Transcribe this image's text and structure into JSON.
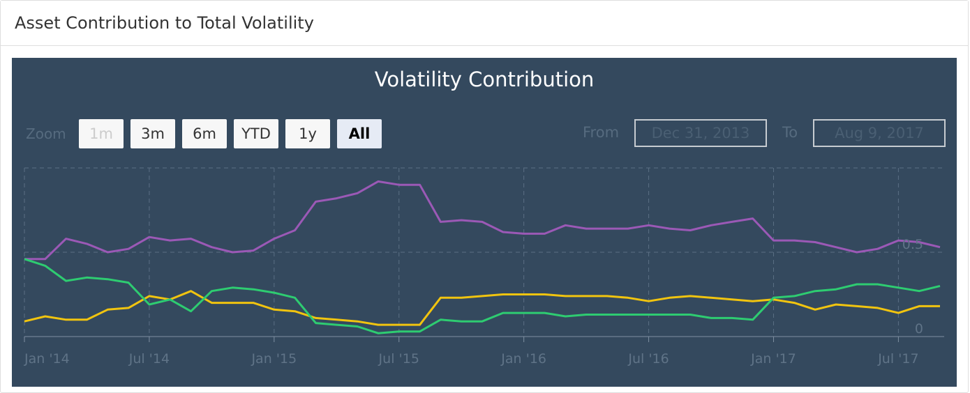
{
  "panel": {
    "title": "Asset Contribution to Total Volatility"
  },
  "range_selector": {
    "zoom_label": "Zoom",
    "buttons": [
      {
        "label": "1m",
        "state": "disabled"
      },
      {
        "label": "3m",
        "state": "normal"
      },
      {
        "label": "6m",
        "state": "normal"
      },
      {
        "label": "YTD",
        "state": "normal"
      },
      {
        "label": "1y",
        "state": "normal"
      },
      {
        "label": "All",
        "state": "selected"
      }
    ],
    "from_label": "From",
    "from_value": "Dec 31, 2013",
    "to_label": "To",
    "to_value": "Aug 9, 2017"
  },
  "colors": {
    "background": "#34495e",
    "grid": "#5b6f84",
    "axis": "#7f90a2",
    "series": [
      "#9b59b6",
      "#f1c40f",
      "#2ecc71"
    ]
  },
  "chart_data": {
    "type": "line",
    "title": "Volatility Contribution",
    "xlabel": "",
    "ylabel": "",
    "x_tick_labels": [
      "Jan '14",
      "Jul '14",
      "Jan '15",
      "Jul '15",
      "Jan '16",
      "Jul '16",
      "Jan '17",
      "Jul '17"
    ],
    "y_tick_labels": [
      "0",
      "0.5"
    ],
    "ylim": [
      0,
      1
    ],
    "xlim": [
      0,
      44.2
    ],
    "legend": "none",
    "grid": true,
    "x": [
      0,
      1,
      2,
      3,
      4,
      5,
      6,
      7,
      8,
      9,
      10,
      11,
      12,
      13,
      14,
      15,
      16,
      17,
      18,
      19,
      20,
      21,
      22,
      23,
      24,
      25,
      26,
      27,
      28,
      29,
      30,
      31,
      32,
      33,
      34,
      35,
      36,
      37,
      38,
      39,
      40,
      41,
      42,
      43,
      44
    ],
    "series": [
      {
        "values": [
          0.46,
          0.46,
          0.58,
          0.55,
          0.5,
          0.52,
          0.59,
          0.57,
          0.58,
          0.53,
          0.5,
          0.51,
          0.58,
          0.63,
          0.8,
          0.82,
          0.85,
          0.92,
          0.9,
          0.9,
          0.68,
          0.69,
          0.68,
          0.62,
          0.61,
          0.61,
          0.66,
          0.64,
          0.64,
          0.64,
          0.66,
          0.64,
          0.63,
          0.66,
          0.68,
          0.7,
          0.57,
          0.57,
          0.56,
          0.53,
          0.5,
          0.52,
          0.57,
          0.56,
          0.53
        ]
      },
      {
        "values": [
          0.09,
          0.12,
          0.1,
          0.1,
          0.16,
          0.17,
          0.24,
          0.22,
          0.27,
          0.2,
          0.2,
          0.2,
          0.16,
          0.15,
          0.11,
          0.1,
          0.09,
          0.07,
          0.07,
          0.07,
          0.23,
          0.23,
          0.24,
          0.25,
          0.25,
          0.25,
          0.24,
          0.24,
          0.24,
          0.23,
          0.21,
          0.23,
          0.24,
          0.23,
          0.22,
          0.21,
          0.22,
          0.2,
          0.16,
          0.19,
          0.18,
          0.17,
          0.14,
          0.18,
          0.18
        ]
      },
      {
        "values": [
          0.46,
          0.42,
          0.33,
          0.35,
          0.34,
          0.32,
          0.19,
          0.22,
          0.15,
          0.27,
          0.29,
          0.28,
          0.26,
          0.23,
          0.08,
          0.07,
          0.06,
          0.02,
          0.03,
          0.03,
          0.1,
          0.09,
          0.09,
          0.14,
          0.14,
          0.14,
          0.12,
          0.13,
          0.13,
          0.13,
          0.13,
          0.13,
          0.13,
          0.11,
          0.11,
          0.1,
          0.23,
          0.24,
          0.27,
          0.28,
          0.31,
          0.31,
          0.29,
          0.27,
          0.3
        ]
      }
    ]
  }
}
